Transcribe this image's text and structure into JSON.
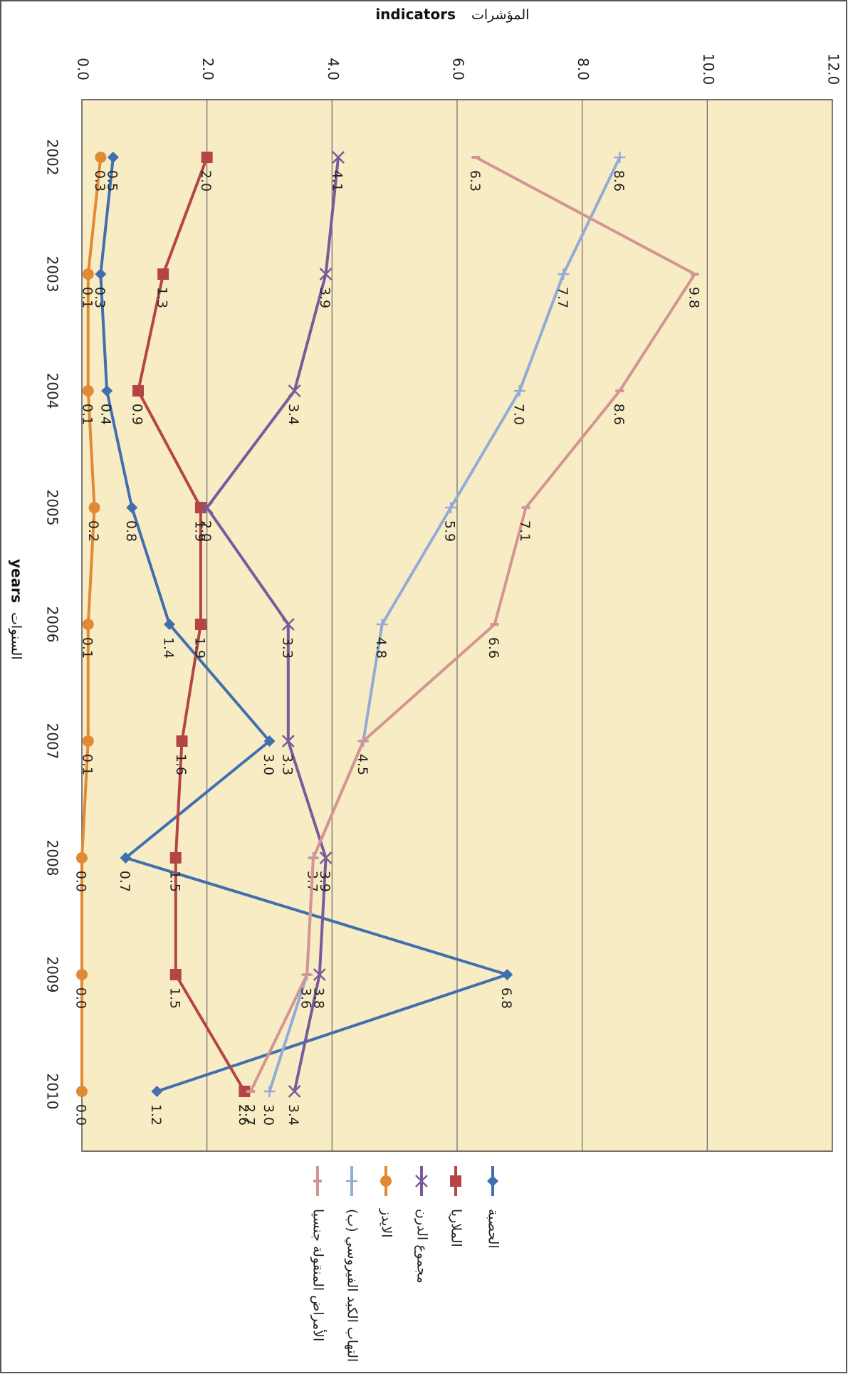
{
  "chart_data": {
    "type": "line",
    "orientation": "rotated-90-clockwise",
    "x": [
      "2002",
      "2003",
      "2004",
      "2005",
      "2006",
      "2007",
      "2008",
      "2009",
      "2010"
    ],
    "xlabel": "years",
    "xlabel_ar": "السنوات",
    "ylabel": "indicators",
    "ylabel_ar": "المؤشرات",
    "ylim": [
      0,
      12
    ],
    "yticks": [
      "0.0",
      "2.0",
      "4.0",
      "6.0",
      "8.0",
      "10.0",
      "12.0"
    ],
    "grid": true,
    "legend_position": "bottom",
    "plot_background": "#f8ecc4",
    "series": [
      {
        "name": "الحصبة",
        "color": "#3f6fb0",
        "marker": "diamond",
        "values": [
          0.5,
          0.3,
          0.4,
          0.8,
          1.4,
          3.0,
          0.7,
          6.8,
          1.2
        ],
        "labels": [
          "0.5",
          "0.3",
          "0.4",
          "0.8",
          "1.4",
          "3.0",
          "0.7",
          "6.8",
          "1.2"
        ]
      },
      {
        "name": "الملاريا",
        "color": "#b54545",
        "marker": "square",
        "values": [
          2.0,
          1.3,
          0.9,
          1.9,
          1.9,
          1.6,
          1.5,
          1.5,
          2.6
        ],
        "labels": [
          "2.0",
          "1.3",
          "0.9",
          "1.9",
          "1.9",
          "1.6",
          "1.5",
          "1.5",
          "2.6"
        ]
      },
      {
        "name": "مجموع الدرن",
        "color": "#7a5a9c",
        "marker": "x",
        "values": [
          4.1,
          3.9,
          3.4,
          2.0,
          3.3,
          3.3,
          3.9,
          3.8,
          3.4
        ],
        "labels": [
          "4.1",
          "3.9",
          "3.4",
          "2.0",
          "3.3",
          "3.3",
          "3.9",
          "3.8",
          "3.4"
        ]
      },
      {
        "name": "الايدز",
        "color": "#e08a35",
        "marker": "circle",
        "values": [
          0.3,
          0.1,
          0.1,
          0.2,
          0.1,
          0.1,
          0.0,
          0.0,
          0.0
        ],
        "labels": [
          "0.3",
          "0.1",
          "0.1",
          "0.2",
          "0.1",
          "0.1",
          "0.0",
          "0.0",
          "0.0"
        ]
      },
      {
        "name": "التهاب الكبد الفيروسي (ب)",
        "color": "#91acd6",
        "marker": "plus",
        "values": [
          8.6,
          7.7,
          7.0,
          5.9,
          4.8,
          4.5,
          3.7,
          3.6,
          3.0
        ],
        "labels": [
          "8.6",
          "7.7",
          "7.0",
          "5.9",
          "4.8",
          "4.5",
          "3.7",
          "3.6",
          "3.0"
        ]
      },
      {
        "name": "الأمراض المنقولة جنسيا",
        "color": "#d49494",
        "marker": "dash",
        "values": [
          6.3,
          9.8,
          8.6,
          7.1,
          6.6,
          4.5,
          3.7,
          3.6,
          2.7
        ],
        "labels": [
          "6.3",
          "9.8",
          "8.6",
          "7.1",
          "6.6",
          "",
          "",
          "",
          "2.7"
        ]
      }
    ]
  }
}
